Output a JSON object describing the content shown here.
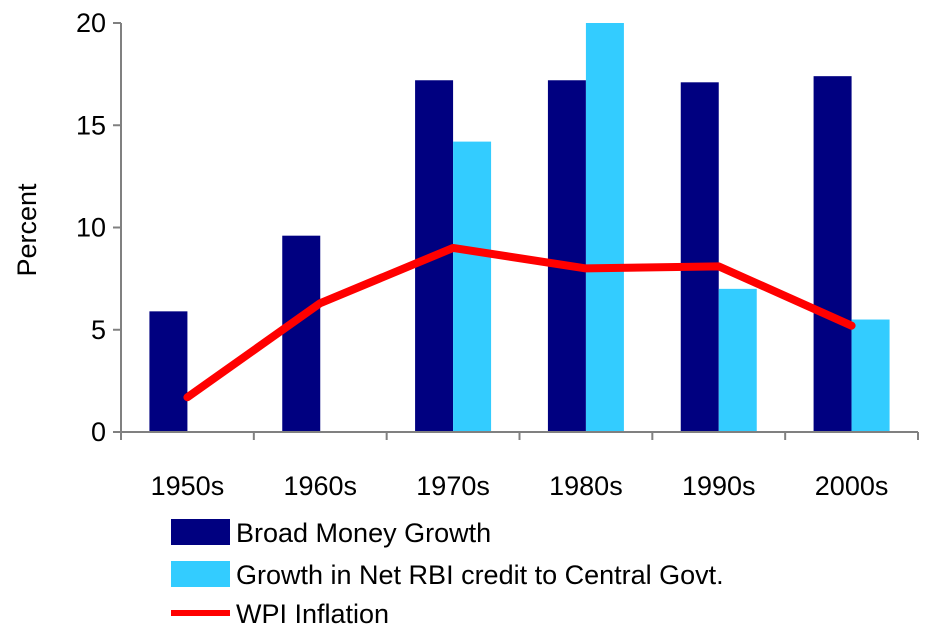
{
  "chart_data": {
    "type": "bar",
    "title": "",
    "xlabel": "",
    "ylabel": "Percent",
    "ylim": [
      0,
      20
    ],
    "yticks": [
      "0",
      "5",
      "10",
      "15",
      "20"
    ],
    "grid": false,
    "legend_position": "bottom",
    "categories": [
      "1950s",
      "1960s",
      "1970s",
      "1980s",
      "1990s",
      "2000s"
    ],
    "series": [
      {
        "name": "Broad Money Growth",
        "kind": "bar",
        "color": "#000080",
        "values": [
          5.9,
          9.6,
          17.2,
          17.2,
          17.1,
          17.4
        ]
      },
      {
        "name": "Growth in Net RBI credit to Central Govt.",
        "kind": "bar",
        "color": "#33CCFF",
        "values": [
          null,
          null,
          14.2,
          20.0,
          7.0,
          5.5
        ]
      },
      {
        "name": "WPI Inflation",
        "kind": "line",
        "color": "#FF0000",
        "values": [
          1.7,
          6.3,
          9.0,
          8.0,
          8.1,
          5.2
        ]
      }
    ]
  }
}
